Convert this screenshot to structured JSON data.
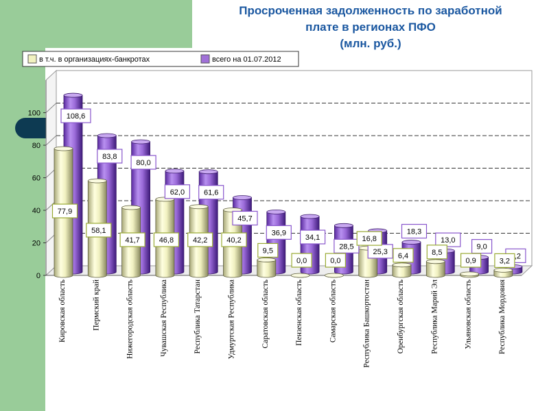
{
  "title": {
    "line1": "Просроченная задолженность по заработной",
    "line2": "плате в регионах  ПФО",
    "line3": "(млн. руб.)"
  },
  "colors": {
    "background_panel": "#99cc99",
    "title": "#1a57a0",
    "series_bankrupt": "#f2f2c0",
    "series_total": "#a070d8",
    "accent_pill": "#0d3a52"
  },
  "chart_data": {
    "type": "bar",
    "bar_style": "3d-cylinder",
    "categories": [
      "Кировская область",
      "Пермский  край",
      "Нижегородская область",
      "Чувашская Республика",
      "Республика Татарстан",
      "Удмуртская Республика",
      "Саратовская область",
      "Пензенская область",
      "Самарская область",
      "Республика Башкортостан",
      "Оренбургская область",
      "Республика Марий Эл",
      "Ульяновская область",
      "Республика Мордовия"
    ],
    "series": [
      {
        "name": "в т.ч. в организациях-банкротах",
        "color": "#f2f2c0",
        "values": [
          77.9,
          58.1,
          41.7,
          46.8,
          42.2,
          40.2,
          9.5,
          0.0,
          0.0,
          16.8,
          6.4,
          8.5,
          0.9,
          3.2
        ],
        "labels": [
          "77,9",
          "58,1",
          "41,7",
          "46,8",
          "42,2",
          "40,2",
          "9,5",
          "0,0",
          "0,0",
          "16,8",
          "6,4",
          "8,5",
          "0,9",
          "3,2"
        ]
      },
      {
        "name": "всего на 01.07.2012",
        "color": "#a070d8",
        "values": [
          108.6,
          83.8,
          80.0,
          62.0,
          61.6,
          45.7,
          36.9,
          34.1,
          28.5,
          25.3,
          18.3,
          13.0,
          9.0,
          3.2
        ],
        "labels": [
          "108,6",
          "83,8",
          "80,0",
          "62,0",
          "61,6",
          "45,7",
          "36,9",
          "34,1",
          "28,5",
          "25,3",
          "18,3",
          "13,0",
          "9,0",
          "3,2"
        ]
      }
    ],
    "yticks": [
      "0",
      "20",
      "40",
      "60",
      "80",
      "100"
    ],
    "ylim": [
      0,
      120
    ],
    "grid": true,
    "legend": "top-left"
  }
}
